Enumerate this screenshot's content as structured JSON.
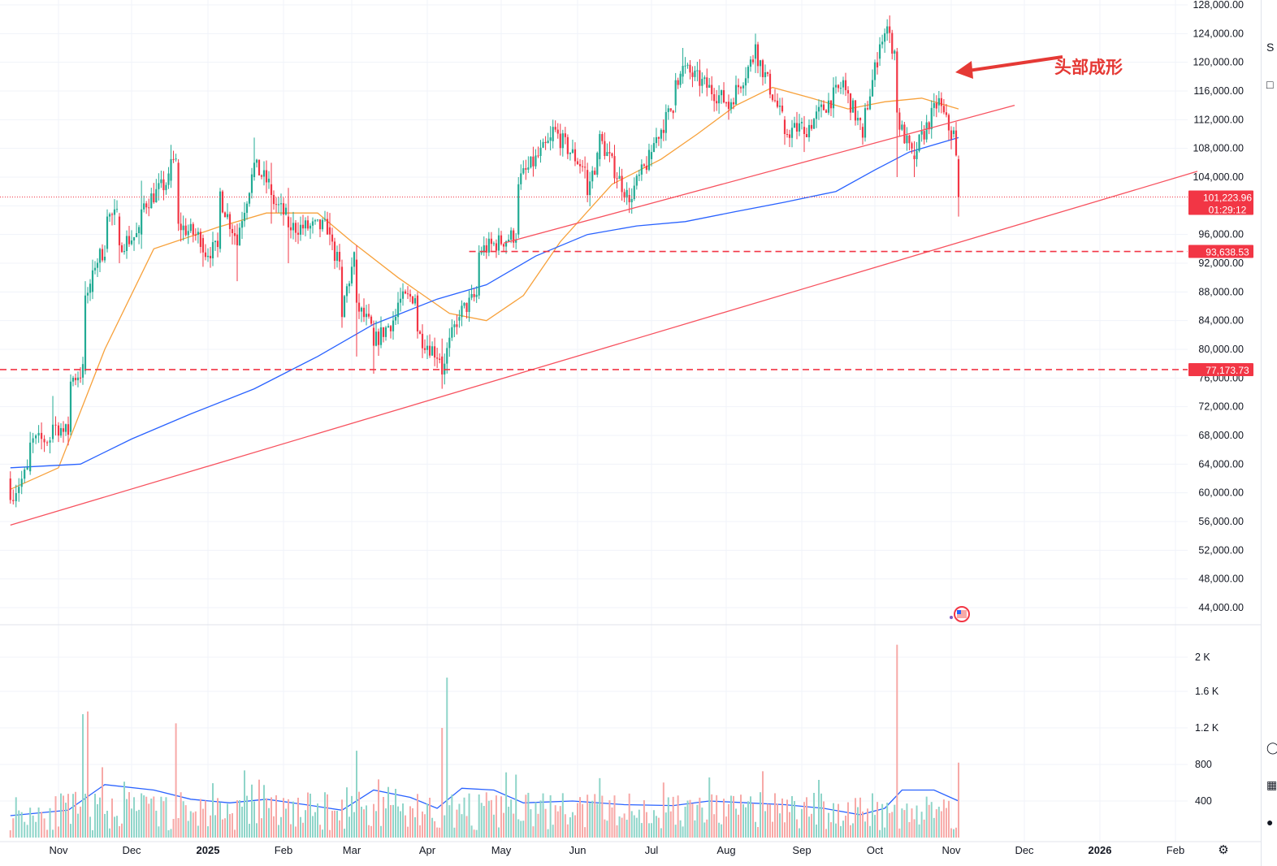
{
  "chart_data": {
    "type": "candlestick",
    "symbol_interval": "1D",
    "price_axis": {
      "labels": [
        "128,000.00",
        "124,000.00",
        "120,000.00",
        "116,000.00",
        "112,000.00",
        "108,000.00",
        "104,000.00",
        "100,000.00",
        "96,000.00",
        "92,000.00",
        "88,000.00",
        "84,000.00",
        "80,000.00",
        "76,000.00",
        "72,000.00",
        "68,000.00",
        "64,000.00",
        "60,000.00",
        "56,000.00",
        "52,000.00",
        "48,000.00",
        "44,000.00"
      ],
      "ylim": [
        43000,
        128500
      ]
    },
    "volume_axis": {
      "labels": [
        "2 K",
        "1.6 K",
        "1.2 K",
        "800",
        "400"
      ],
      "values": [
        2000,
        1600,
        1200,
        800,
        400
      ]
    },
    "time_axis": {
      "labels": [
        "Nov",
        "Dec",
        "2025",
        "Feb",
        "Mar",
        "Apr",
        "May",
        "Jun",
        "Jul",
        "Aug",
        "Sep",
        "Oct",
        "Nov",
        "Dec",
        "2026",
        "Feb"
      ],
      "bold": [
        "2025",
        "2026"
      ],
      "start_date": "2024-10-15",
      "last_date": "2025-11-04",
      "end_date": "2026-02-28"
    },
    "current_price": {
      "label": "101,223.96",
      "countdown": "01:29:12",
      "value": 101223.96,
      "color": "#f23645"
    },
    "levels": [
      {
        "label": "93,638.53",
        "value": 93638.53,
        "color": "#f23645",
        "style": "dashed"
      },
      {
        "label": "77,173.73",
        "value": 77173.73,
        "color": "#f23645",
        "style": "dashed"
      }
    ],
    "annotation": {
      "text": "头部成形",
      "color": "#e53935"
    },
    "trendlines": [
      {
        "name": "lower-trendline",
        "color": "#f7525f",
        "from": [
          "2024-10-15",
          55500
        ],
        "to": [
          "2026-02-10",
          104800
        ]
      },
      {
        "name": "upper-trendline",
        "color": "#f7525f",
        "from": [
          "2025-05-02",
          94800
        ],
        "to": [
          "2025-11-27",
          114000
        ]
      }
    ],
    "moving_averages": [
      {
        "name": "MA50",
        "color": "#f7a13b",
        "points": [
          [
            "2024-10-15",
            60500
          ],
          [
            "2024-11-01",
            63500
          ],
          [
            "2024-11-20",
            80000
          ],
          [
            "2024-12-10",
            94000
          ],
          [
            "2025-01-05",
            97000
          ],
          [
            "2025-01-25",
            99000
          ],
          [
            "2025-02-15",
            99000
          ],
          [
            "2025-03-01",
            95000
          ],
          [
            "2025-03-20",
            90000
          ],
          [
            "2025-04-10",
            85000
          ],
          [
            "2025-04-25",
            84000
          ],
          [
            "2025-05-10",
            87500
          ],
          [
            "2025-05-25",
            95000
          ],
          [
            "2025-06-15",
            103000
          ],
          [
            "2025-07-05",
            106500
          ],
          [
            "2025-07-20",
            110000
          ],
          [
            "2025-08-05",
            114000
          ],
          [
            "2025-08-20",
            116500
          ],
          [
            "2025-09-05",
            115000
          ],
          [
            "2025-09-20",
            113500
          ],
          [
            "2025-10-05",
            114500
          ],
          [
            "2025-10-20",
            115000
          ],
          [
            "2025-11-04",
            113500
          ]
        ]
      },
      {
        "name": "MA200",
        "color": "#2962ff",
        "points": [
          [
            "2024-10-15",
            63500
          ],
          [
            "2024-11-10",
            64000
          ],
          [
            "2024-12-01",
            67500
          ],
          [
            "2024-12-25",
            71000
          ],
          [
            "2025-01-20",
            74500
          ],
          [
            "2025-02-15",
            79000
          ],
          [
            "2025-03-10",
            83500
          ],
          [
            "2025-04-05",
            87000
          ],
          [
            "2025-04-25",
            89000
          ],
          [
            "2025-05-15",
            93000
          ],
          [
            "2025-06-05",
            96000
          ],
          [
            "2025-06-25",
            97200
          ],
          [
            "2025-07-15",
            97800
          ],
          [
            "2025-08-05",
            99200
          ],
          [
            "2025-08-25",
            100500
          ],
          [
            "2025-09-15",
            102000
          ],
          [
            "2025-10-01",
            105000
          ],
          [
            "2025-10-15",
            107500
          ],
          [
            "2025-11-04",
            109500
          ]
        ]
      },
      {
        "name": "volume-ma",
        "color": "#2962ff",
        "pane": "volume",
        "points": [
          [
            "2024-10-15",
            240
          ],
          [
            "2024-11-05",
            300
          ],
          [
            "2024-11-20",
            580
          ],
          [
            "2024-12-10",
            520
          ],
          [
            "2024-12-25",
            420
          ],
          [
            "2025-01-10",
            380
          ],
          [
            "2025-01-25",
            420
          ],
          [
            "2025-02-10",
            360
          ],
          [
            "2025-02-25",
            300
          ],
          [
            "2025-03-10",
            520
          ],
          [
            "2025-03-25",
            440
          ],
          [
            "2025-04-05",
            320
          ],
          [
            "2025-04-15",
            540
          ],
          [
            "2025-04-28",
            520
          ],
          [
            "2025-05-10",
            380
          ],
          [
            "2025-05-30",
            400
          ],
          [
            "2025-06-20",
            360
          ],
          [
            "2025-07-10",
            350
          ],
          [
            "2025-07-25",
            400
          ],
          [
            "2025-08-10",
            380
          ],
          [
            "2025-08-25",
            360
          ],
          [
            "2025-09-10",
            320
          ],
          [
            "2025-09-25",
            250
          ],
          [
            "2025-10-05",
            320
          ],
          [
            "2025-10-12",
            520
          ],
          [
            "2025-10-25",
            520
          ],
          [
            "2025-11-04",
            400
          ]
        ]
      }
    ],
    "candles_summary": [
      [
        "2024-10-15",
        62000,
        59000,
        63000,
        58500
      ],
      [
        "2024-10-22",
        63000,
        67000,
        68500,
        62500
      ],
      [
        "2024-10-30",
        67500,
        69500,
        73500,
        67000
      ],
      [
        "2024-11-03",
        69000,
        68500,
        70000,
        67000
      ],
      [
        "2024-11-06",
        68500,
        75500,
        76500,
        68000
      ],
      [
        "2024-11-12",
        77000,
        87500,
        89500,
        76500
      ],
      [
        "2024-11-15",
        88000,
        91000,
        92500,
        87000
      ],
      [
        "2024-11-21",
        94000,
        98500,
        99500,
        93500
      ],
      [
        "2024-11-26",
        98500,
        94500,
        99000,
        92000
      ],
      [
        "2024-12-05",
        96000,
        99500,
        103500,
        94000
      ],
      [
        "2024-12-17",
        103500,
        106500,
        108500,
        102500
      ],
      [
        "2024-12-20",
        106000,
        97500,
        106500,
        96500
      ],
      [
        "2024-12-30",
        95500,
        93500,
        96000,
        91500
      ],
      [
        "2025-01-06",
        94000,
        102000,
        102500,
        93500
      ],
      [
        "2025-01-13",
        96000,
        94500,
        97500,
        89500
      ],
      [
        "2025-01-20",
        104000,
        106000,
        109500,
        103500
      ],
      [
        "2025-01-27",
        103000,
        101500,
        106000,
        97500
      ],
      [
        "2025-02-03",
        98500,
        97000,
        102500,
        92000
      ],
      [
        "2025-02-20",
        97000,
        96000,
        99000,
        94500
      ],
      [
        "2025-02-25",
        91500,
        84500,
        92500,
        83000
      ],
      [
        "2025-03-03",
        92500,
        86500,
        94500,
        79000
      ],
      [
        "2025-03-10",
        83000,
        80500,
        84000,
        76600
      ],
      [
        "2025-03-20",
        84500,
        86500,
        88000,
        83500
      ],
      [
        "2025-03-28",
        87500,
        82500,
        88000,
        81500
      ],
      [
        "2025-04-07",
        79000,
        76500,
        81500,
        74500
      ],
      [
        "2025-04-14",
        84000,
        84500,
        85500,
        83000
      ],
      [
        "2025-04-22",
        87500,
        93500,
        94500,
        87000
      ],
      [
        "2025-05-08",
        96000,
        103000,
        104000,
        95500
      ],
      [
        "2025-05-22",
        109000,
        111000,
        112000,
        108000
      ],
      [
        "2025-06-05",
        105000,
        101500,
        106000,
        100500
      ],
      [
        "2025-06-10",
        106500,
        110000,
        110500,
        105500
      ],
      [
        "2025-06-22",
        101500,
        100500,
        102500,
        99000
      ],
      [
        "2025-07-01",
        106500,
        107500,
        108500,
        105500
      ],
      [
        "2025-07-11",
        114000,
        117500,
        118500,
        113000
      ],
      [
        "2025-07-14",
        118000,
        119500,
        122000,
        117000
      ],
      [
        "2025-08-02",
        114500,
        113500,
        115500,
        112000
      ],
      [
        "2025-08-13",
        120500,
        122500,
        124000,
        118500
      ],
      [
        "2025-08-25",
        112000,
        110000,
        112500,
        108500
      ],
      [
        "2025-09-02",
        111000,
        110000,
        112500,
        107500
      ],
      [
        "2025-09-18",
        116500,
        117500,
        118000,
        115500
      ],
      [
        "2025-09-26",
        111000,
        109500,
        111500,
        108500
      ],
      [
        "2025-10-03",
        120500,
        122500,
        123500,
        119500
      ],
      [
        "2025-10-06",
        124000,
        125000,
        126000,
        123000
      ],
      [
        "2025-10-10",
        121500,
        113000,
        122000,
        104000
      ],
      [
        "2025-10-17",
        107000,
        106500,
        109000,
        104000
      ],
      [
        "2025-10-27",
        114000,
        115000,
        116000,
        113000
      ],
      [
        "2025-11-02",
        110000,
        110500,
        111000,
        109500
      ],
      [
        "2025-11-04",
        106500,
        101200,
        107000,
        98500
      ]
    ],
    "volume_spikes": [
      [
        "2024-11-11",
        1350,
        "up"
      ],
      [
        "2024-11-13",
        1380,
        "down"
      ],
      [
        "2024-12-19",
        1250,
        "down"
      ],
      [
        "2025-03-03",
        950,
        "up"
      ],
      [
        "2025-04-09",
        1750,
        "up"
      ],
      [
        "2025-04-07",
        1200,
        "down"
      ],
      [
        "2025-10-10",
        2110,
        "down"
      ],
      [
        "2025-11-04",
        820,
        "down"
      ]
    ]
  },
  "colors": {
    "up": "#22ab94",
    "down": "#f23645",
    "grid": "#f0f3fa",
    "axis_text": "#131722"
  },
  "icons": {
    "settings": "gear-icon",
    "events": "us-flag-event-icon"
  }
}
